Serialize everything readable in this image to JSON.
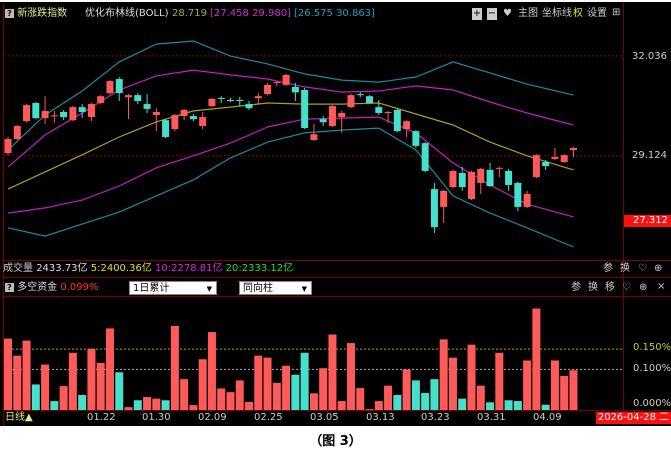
{
  "header": {
    "index_name": "新涨跌指数",
    "indicator": "优化布林线(BOLL)",
    "mid_value": "28.719",
    "upper_pair": "[27.458  29.980]",
    "outer_pair": "[26.575  30.863]",
    "buttons": {
      "zoom_in": "+",
      "zoom_out": "−",
      "favorite": "♥",
      "main_chart": "主图",
      "crosshair": "坐标线",
      "rights": "权",
      "settings": "设置",
      "expand": "⊞"
    }
  },
  "volume": {
    "label": "成交量",
    "value": "2433.73亿",
    "ma5": "5:2400.36亿",
    "ma10": "10:2278.81亿",
    "ma20": "20:2333.12亿",
    "icons": {
      "param": "参",
      "switch": "换",
      "fav": "♡",
      "zoom": "⊕"
    }
  },
  "fund": {
    "label": "多空资金",
    "value": "0.099%",
    "select1": "1日累计",
    "select2": "同向柱",
    "icons": {
      "param": "参",
      "switch": "换",
      "move": "移",
      "fav": "♡",
      "zoom": "⊕",
      "close": "×"
    }
  },
  "axis": {
    "main_labels": [
      "32.036",
      "29.124"
    ],
    "current_price": "27.312",
    "sub_labels": [
      "0.150%",
      "0.100%",
      "0.000%"
    ],
    "dates": [
      "01.22",
      "01.30",
      "02.09",
      "02.25",
      "03.05",
      "03.13",
      "03.23",
      "03.31",
      "04.09"
    ],
    "period": "日线▲",
    "current_date": "2026-04-28 二"
  },
  "caption": "（图 3）",
  "colors": {
    "up": "#ff5a5a",
    "down": "#44e0cc",
    "outer_band": "#1a8aa0",
    "inner_band": "#c020c0",
    "mid_band": "#a8a020",
    "background": "#000000",
    "grid": "#7a0000",
    "ref_150": "#b0b000",
    "ref_100": "#aaaaaa"
  },
  "chart_data": [
    {
      "type": "candlestick",
      "ylim": [
        26.14,
        32.79
      ],
      "grid": false,
      "ohlc": [
        [
          29.2,
          29.67,
          29.14,
          29.61
        ],
        [
          29.61,
          30.02,
          29.58,
          29.99
        ],
        [
          30.13,
          30.63,
          30.1,
          30.6
        ],
        [
          30.66,
          30.69,
          30.19,
          30.22
        ],
        [
          30.22,
          30.86,
          30.05,
          30.43
        ],
        [
          30.27,
          30.43,
          30.08,
          30.3
        ],
        [
          30.4,
          30.46,
          30.16,
          30.25
        ],
        [
          30.16,
          30.57,
          30.13,
          30.54
        ],
        [
          30.54,
          30.63,
          30.22,
          30.4
        ],
        [
          30.25,
          30.66,
          30.13,
          30.63
        ],
        [
          30.66,
          30.89,
          30.63,
          30.86
        ],
        [
          30.95,
          31.33,
          30.92,
          31.3
        ],
        [
          31.36,
          31.42,
          30.72,
          30.95
        ],
        [
          30.83,
          30.92,
          30.19,
          30.89
        ],
        [
          30.89,
          30.95,
          30.63,
          30.72
        ],
        [
          30.63,
          30.92,
          30.37,
          30.49
        ],
        [
          30.31,
          30.51,
          29.84,
          30.4
        ],
        [
          30.16,
          30.19,
          29.64,
          29.67
        ],
        [
          29.9,
          30.34,
          29.84,
          30.31
        ],
        [
          30.28,
          30.49,
          30.16,
          30.46
        ],
        [
          30.28,
          30.34,
          30.13,
          30.19
        ],
        [
          29.99,
          30.4,
          29.9,
          30.25
        ],
        [
          30.57,
          30.81,
          30.54,
          30.78
        ],
        [
          30.81,
          30.86,
          30.66,
          30.78
        ],
        [
          30.75,
          30.81,
          30.69,
          30.72
        ],
        [
          30.75,
          30.84,
          30.57,
          30.72
        ],
        [
          30.63,
          30.72,
          30.46,
          30.51
        ],
        [
          30.8,
          30.95,
          30.63,
          30.86
        ],
        [
          30.92,
          31.25,
          30.89,
          31.19
        ],
        [
          31.24,
          31.3,
          31.16,
          31.27
        ],
        [
          31.19,
          31.51,
          31.16,
          31.48
        ],
        [
          31.13,
          31.25,
          30.72,
          30.97
        ],
        [
          31.04,
          31.1,
          29.9,
          29.93
        ],
        [
          29.58,
          30.05,
          29.55,
          29.75
        ],
        [
          30.19,
          30.28,
          29.99,
          30.1
        ],
        [
          29.99,
          30.6,
          29.96,
          30.57
        ],
        [
          30.25,
          30.43,
          29.79,
          30.37
        ],
        [
          30.54,
          30.92,
          30.51,
          30.89
        ],
        [
          30.92,
          30.98,
          30.83,
          30.89
        ],
        [
          30.86,
          30.89,
          30.63,
          30.66
        ],
        [
          30.54,
          30.75,
          30.31,
          30.37
        ],
        [
          30.37,
          30.43,
          30.08,
          30.4
        ],
        [
          30.46,
          30.49,
          29.81,
          29.84
        ],
        [
          29.9,
          30.16,
          29.67,
          30.13
        ],
        [
          29.84,
          29.87,
          29.35,
          29.41
        ],
        [
          29.49,
          29.52,
          28.65,
          28.68
        ],
        [
          28.15,
          28.33,
          26.87,
          27.04
        ],
        [
          27.63,
          28.13,
          27.16,
          28.1
        ],
        [
          28.21,
          28.71,
          28.18,
          28.68
        ],
        [
          28.62,
          28.8,
          28.1,
          28.21
        ],
        [
          27.86,
          28.68,
          27.83,
          28.65
        ],
        [
          28.33,
          28.77,
          28.01,
          28.74
        ],
        [
          28.71,
          28.91,
          28.21,
          28.24
        ],
        [
          28.74,
          28.8,
          28.5,
          28.77
        ],
        [
          28.68,
          28.74,
          28.1,
          28.27
        ],
        [
          28.33,
          28.36,
          27.51,
          27.63
        ],
        [
          27.63,
          28.1,
          27.6,
          28.01
        ],
        [
          28.5,
          29.17,
          28.47,
          29.14
        ],
        [
          28.94,
          29.0,
          28.71,
          28.82
        ],
        [
          29.03,
          29.35,
          29.0,
          29.09
        ],
        [
          28.94,
          29.17,
          28.91,
          29.14
        ],
        [
          29.29,
          29.38,
          29.08,
          29.35
        ]
      ],
      "band_index": [
        1,
        5,
        9,
        13,
        17,
        21,
        25,
        29,
        33,
        37,
        41,
        45,
        49,
        53,
        57,
        62
      ],
      "outer_upper": [
        29.29,
        30.31,
        31.01,
        31.86,
        32.38,
        32.47,
        32.03,
        31.8,
        31.51,
        31.33,
        31.27,
        31.42,
        31.86,
        31.54,
        31.21,
        30.89
      ],
      "inner_upper": [
        28.79,
        29.73,
        30.37,
        31.04,
        31.45,
        31.62,
        31.48,
        31.36,
        31.13,
        30.98,
        31.01,
        31.16,
        31.04,
        30.69,
        30.37,
        30.02
      ],
      "mid": [
        28.15,
        28.65,
        29.15,
        29.67,
        30.11,
        30.43,
        30.54,
        30.66,
        30.63,
        30.63,
        30.66,
        30.34,
        30.02,
        29.52,
        29.12,
        28.71
      ],
      "inner_lower": [
        27.45,
        27.6,
        27.83,
        28.24,
        28.77,
        29.12,
        29.49,
        29.96,
        30.19,
        30.22,
        30.25,
        29.79,
        28.91,
        28.27,
        27.71,
        27.34
      ],
      "outer_lower": [
        27.02,
        26.78,
        27.13,
        27.48,
        27.95,
        28.42,
        29.06,
        29.52,
        29.79,
        29.87,
        29.93,
        29.29,
        27.95,
        27.45,
        27.02,
        26.46
      ]
    },
    {
      "type": "bar",
      "ylim": [
        0,
        0.276
      ],
      "unit": "%",
      "reference_lines": [
        0.15,
        0.1
      ],
      "values": [
        0.176,
        0.134,
        0.171,
        0.063,
        0.112,
        0.022,
        0.059,
        0.141,
        0.037,
        0.151,
        0.116,
        0.201,
        0.093,
        0.007,
        0.024,
        0.032,
        0.028,
        0.024,
        0.207,
        0.076,
        0.012,
        0.125,
        0.192,
        0.053,
        0.044,
        0.073,
        0.02,
        0.134,
        0.129,
        0.067,
        0.109,
        0.087,
        0.141,
        0.041,
        0.103,
        0.186,
        0.022,
        0.165,
        0.054,
        0.002,
        0.022,
        0.06,
        0.037,
        0.1,
        0.073,
        0.042,
        0.076,
        0.174,
        0.129,
        0.028,
        0.161,
        0.06,
        0.019,
        0.141,
        0.024,
        0.022,
        0.122,
        0.25,
        0.013,
        0.122,
        0.084,
        0.098
      ],
      "colors": [
        "up",
        "up",
        "up",
        "down",
        "up",
        "down",
        "up",
        "up",
        "down",
        "up",
        "up",
        "up",
        "down",
        "up",
        "down",
        "up",
        "up",
        "down",
        "up",
        "up",
        "up",
        "up",
        "up",
        "up",
        "up",
        "up",
        "up",
        "up",
        "up",
        "up",
        "up",
        "down",
        "down",
        "up",
        "up",
        "up",
        "up",
        "up",
        "up",
        "up",
        "up",
        "up",
        "down",
        "up",
        "down",
        "down",
        "down",
        "up",
        "up",
        "down",
        "up",
        "up",
        "down",
        "up",
        "down",
        "down",
        "up",
        "up",
        "down",
        "up",
        "up",
        "up"
      ]
    }
  ]
}
